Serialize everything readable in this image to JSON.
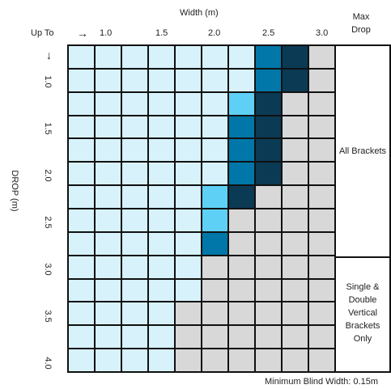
{
  "header": {
    "width_title": "Width (m)",
    "up_to": "Up To",
    "arrow_right": "→",
    "max_drop": [
      "Max",
      "Drop"
    ],
    "width_ticks": [
      "1.0",
      "1.5",
      "2.0",
      "2.5",
      "3.0"
    ]
  },
  "left": {
    "arrow_down": "↓",
    "drop_label": "DROP (m)",
    "drop_ticks": [
      "1.0",
      "1.5",
      "2.0",
      "2.5",
      "3.0",
      "3.5",
      "4.0"
    ]
  },
  "side": {
    "all_brackets": "All Brackets",
    "single_double": [
      "Single &",
      "Double",
      "Vertical",
      "Brackets",
      "Only"
    ]
  },
  "footer": {
    "min_width": "Minimum Blind Width: 0.15m"
  },
  "colors": {
    "L": "#d7f2fb",
    "C": "#5fd0f5",
    "M": "#0077a8",
    "D": "#0b3a55",
    "G": "#d8d8d8",
    "grid": "#111111"
  },
  "grid": {
    "rows": 14,
    "cols": 10,
    "cells": [
      "LLLLLLLMDG",
      "LLLLLLLMDG",
      "LLLLLLCDGG",
      "LLLLLLMDGG",
      "LLLLLLMDGG",
      "LLLLLLMDGG",
      "LLLLLCDGGG",
      "LLLLLCGGGG",
      "LLLLLMGGGG",
      "LLLLLGGGGG",
      "LLLLLGGGGG",
      "LLLLGGGGGG",
      "LLLLGGGGGG",
      "LLLLGGGGGG"
    ]
  }
}
